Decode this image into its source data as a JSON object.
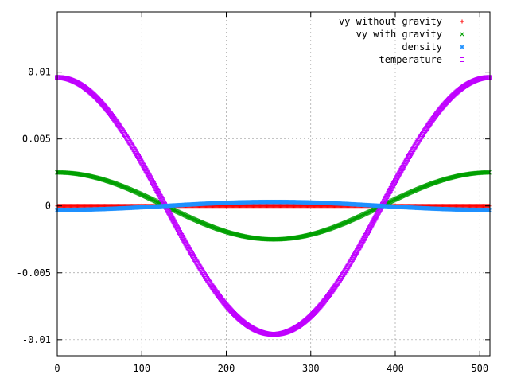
{
  "chart_data": {
    "type": "scatter",
    "xlim": [
      0,
      512
    ],
    "ylim": [
      -0.0112,
      0.0145
    ],
    "x_ticks": [
      0,
      100,
      200,
      300,
      400,
      500
    ],
    "y_ticks": [
      -0.01,
      -0.005,
      0,
      0.005,
      0.01
    ],
    "x_tick_labels": [
      "0",
      "100",
      "200",
      "300",
      "400",
      "500"
    ],
    "y_tick_labels": [
      "-0.01",
      "-0.005",
      "0",
      "0.005",
      "0.01"
    ],
    "grid": true,
    "legend_position": "top-right",
    "n_points": 512,
    "series": [
      {
        "name": "vy without gravity",
        "marker": "+",
        "color": "#ff0000",
        "shape": "constant",
        "value": 0.0
      },
      {
        "name": "vy with gravity",
        "marker": "x",
        "color": "#00a000",
        "shape": "cosine",
        "amplitude": 0.0025,
        "period": 512,
        "phase": 0
      },
      {
        "name": "density",
        "marker": "*",
        "color": "#1e90ff",
        "shape": "cosine",
        "amplitude": -0.0003,
        "period": 512,
        "phase": 0
      },
      {
        "name": "temperature",
        "marker": "square",
        "color": "#c000ff",
        "shape": "cosine",
        "amplitude": 0.0096,
        "period": 512,
        "phase": 0
      }
    ]
  }
}
